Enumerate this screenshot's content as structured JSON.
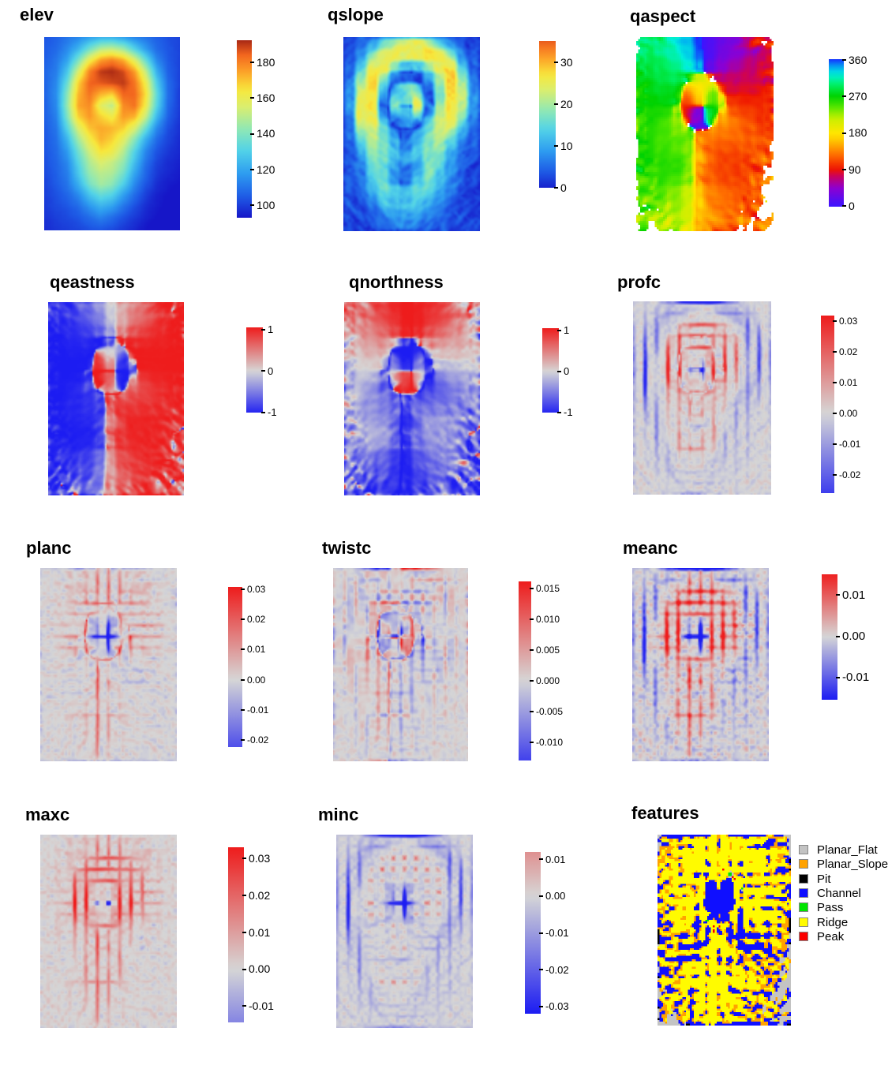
{
  "page": {
    "background": "#ffffff"
  },
  "chart_data": {
    "type": "heatmap",
    "description": "Figure of 12 terrain-analysis raster maps (elevation and derived geomorphometric layers) each with its own color legend",
    "shared_elevation_model": {
      "cols": 13,
      "rows": 18,
      "cell_size_m": 60,
      "values": [
        [
          104,
          106,
          110,
          114,
          120,
          124,
          124,
          120,
          114,
          110,
          106,
          103,
          101
        ],
        [
          105,
          108,
          114,
          124,
          138,
          150,
          152,
          146,
          132,
          118,
          108,
          104,
          101
        ],
        [
          106,
          110,
          120,
          140,
          162,
          176,
          180,
          174,
          158,
          136,
          114,
          105,
          101
        ],
        [
          107,
          112,
          128,
          156,
          180,
          190,
          192,
          188,
          176,
          152,
          122,
          106,
          101
        ],
        [
          107,
          114,
          136,
          168,
          184,
          186,
          188,
          190,
          182,
          162,
          130,
          108,
          101
        ],
        [
          107,
          115,
          142,
          172,
          182,
          172,
          168,
          184,
          184,
          166,
          134,
          109,
          100
        ],
        [
          106,
          114,
          144,
          174,
          178,
          158,
          150,
          178,
          182,
          162,
          132,
          108,
          100
        ],
        [
          106,
          112,
          140,
          168,
          176,
          168,
          162,
          176,
          172,
          152,
          124,
          106,
          99
        ],
        [
          105,
          110,
          132,
          156,
          170,
          174,
          172,
          168,
          156,
          136,
          114,
          103,
          98
        ],
        [
          104,
          109,
          124,
          146,
          162,
          172,
          168,
          158,
          142,
          122,
          108,
          101,
          97
        ],
        [
          104,
          108,
          118,
          138,
          154,
          166,
          162,
          150,
          132,
          114,
          104,
          99,
          96
        ],
        [
          103,
          107,
          114,
          132,
          148,
          156,
          152,
          144,
          126,
          110,
          101,
          97,
          95
        ],
        [
          102,
          106,
          112,
          128,
          144,
          150,
          148,
          138,
          120,
          107,
          99,
          96,
          94
        ],
        [
          101,
          105,
          110,
          122,
          138,
          146,
          142,
          130,
          114,
          104,
          97,
          94,
          93
        ],
        [
          100,
          103,
          107,
          114,
          126,
          134,
          130,
          118,
          108,
          100,
          95,
          93,
          92
        ],
        [
          99,
          102,
          104,
          108,
          116,
          122,
          118,
          110,
          103,
          97,
          94,
          92,
          91
        ],
        [
          98,
          100,
          102,
          104,
          108,
          112,
          108,
          103,
          99,
          95,
          93,
          91,
          90
        ],
        [
          97,
          99,
          100,
          101,
          103,
          104,
          102,
          99,
          96,
          93,
          91,
          89,
          88
        ]
      ]
    },
    "palettes": {
      "jet": [
        [
          0,
          "#1616c8"
        ],
        [
          0.12,
          "#1e5be6"
        ],
        [
          0.25,
          "#2e9df0"
        ],
        [
          0.38,
          "#52d3e8"
        ],
        [
          0.5,
          "#90e8b4"
        ],
        [
          0.62,
          "#d8ee72"
        ],
        [
          0.72,
          "#f8e83c"
        ],
        [
          0.82,
          "#fca428"
        ],
        [
          0.92,
          "#f2641e"
        ],
        [
          1,
          "#a82814"
        ]
      ],
      "aspect": [
        [
          0,
          "#3c14ff"
        ],
        [
          0.12,
          "#8c00d2"
        ],
        [
          0.2,
          "#c80064"
        ],
        [
          0.25,
          "#ee1400"
        ],
        [
          0.35,
          "#ff6e00"
        ],
        [
          0.45,
          "#ffc800"
        ],
        [
          0.5,
          "#ffe600"
        ],
        [
          0.6,
          "#c8f000"
        ],
        [
          0.68,
          "#50e600"
        ],
        [
          0.75,
          "#00d200"
        ],
        [
          0.83,
          "#00f064"
        ],
        [
          0.9,
          "#00f0dc"
        ],
        [
          0.95,
          "#00b4f0"
        ],
        [
          1,
          "#1432ff"
        ]
      ],
      "diverging_pos": "#ee1c1c",
      "diverging_mid": "#d6d6d6",
      "diverging_neg": "#1c1cf2"
    },
    "panels": [
      {
        "id": "elev",
        "title": "elev",
        "legend": "colorbar",
        "palette": "jet",
        "scale_min": 93,
        "scale_max": 192.3,
        "palette_span": [
          0,
          1
        ],
        "ticks": [
          {
            "label": "180",
            "value": 180
          },
          {
            "label": "160",
            "value": 160
          },
          {
            "label": "140",
            "value": 140
          },
          {
            "label": "120",
            "value": 120
          },
          {
            "label": "100",
            "value": 100
          }
        ]
      },
      {
        "id": "qslope",
        "title": "qslope",
        "legend": "colorbar",
        "palette": "jet",
        "scale_min": 0,
        "scale_max": 35.2,
        "palette_span": [
          0.02,
          0.93
        ],
        "ticks": [
          {
            "label": "30",
            "value": 30
          },
          {
            "label": "20",
            "value": 20
          },
          {
            "label": "10",
            "value": 10
          },
          {
            "label": "0",
            "value": 0
          }
        ]
      },
      {
        "id": "qaspect",
        "title": "qaspect",
        "legend": "colorbar",
        "palette": "aspect",
        "scale_min": -2,
        "scale_max": 362,
        "palette_span": [
          0,
          1
        ],
        "ticks": [
          {
            "label": "360",
            "value": 360
          },
          {
            "label": "270",
            "value": 270
          },
          {
            "label": "180",
            "value": 180
          },
          {
            "label": "90",
            "value": 90
          },
          {
            "label": "0",
            "value": 0
          }
        ]
      },
      {
        "id": "qeastness",
        "title": "qeastness",
        "legend": "colorbar",
        "palette": "diverging",
        "scale_min": -1,
        "scale_max": 1.05,
        "ticks": [
          {
            "label": "1",
            "value": 1
          },
          {
            "label": "0",
            "value": 0
          },
          {
            "label": "-1",
            "value": -1
          }
        ]
      },
      {
        "id": "qnorthness",
        "title": "qnorthness",
        "legend": "colorbar",
        "palette": "diverging",
        "scale_min": -1,
        "scale_max": 1.05,
        "ticks": [
          {
            "label": "1",
            "value": 1
          },
          {
            "label": "0",
            "value": 0
          },
          {
            "label": "-1",
            "value": -1
          }
        ]
      },
      {
        "id": "profc",
        "title": "profc",
        "legend": "colorbar",
        "palette": "diverging",
        "scale_min": -0.026,
        "scale_max": 0.0318,
        "ticks": [
          {
            "label": "0.03",
            "value": 0.03
          },
          {
            "label": "0.02",
            "value": 0.02
          },
          {
            "label": "0.01",
            "value": 0.01
          },
          {
            "label": "0.00",
            "value": 0
          },
          {
            "label": "-0.01",
            "value": -0.01
          },
          {
            "label": "-0.02",
            "value": -0.02
          }
        ]
      },
      {
        "id": "planc",
        "title": "planc",
        "legend": "colorbar",
        "palette": "diverging",
        "scale_min": -0.0224,
        "scale_max": 0.0308,
        "ticks": [
          {
            "label": "0.03",
            "value": 0.03
          },
          {
            "label": "0.02",
            "value": 0.02
          },
          {
            "label": "0.01",
            "value": 0.01
          },
          {
            "label": "0.00",
            "value": 0
          },
          {
            "label": "-0.01",
            "value": -0.01
          },
          {
            "label": "-0.02",
            "value": -0.02
          }
        ]
      },
      {
        "id": "twistc",
        "title": "twistc",
        "legend": "colorbar",
        "palette": "diverging",
        "scale_min": -0.013,
        "scale_max": 0.0162,
        "ticks": [
          {
            "label": "0.015",
            "value": 0.015
          },
          {
            "label": "0.010",
            "value": 0.01
          },
          {
            "label": "0.005",
            "value": 0.005
          },
          {
            "label": "0.000",
            "value": 0
          },
          {
            "label": "-0.005",
            "value": -0.005
          },
          {
            "label": "-0.010",
            "value": -0.01
          }
        ]
      },
      {
        "id": "meanc",
        "title": "meanc",
        "legend": "colorbar",
        "palette": "diverging",
        "scale_min": -0.0153,
        "scale_max": 0.015,
        "ticks": [
          {
            "label": "0.01",
            "value": 0.01
          },
          {
            "label": "0.00",
            "value": 0
          },
          {
            "label": "-0.01",
            "value": -0.01
          }
        ]
      },
      {
        "id": "maxc",
        "title": "maxc",
        "legend": "colorbar",
        "palette": "diverging",
        "scale_min": -0.0144,
        "scale_max": 0.033,
        "ticks": [
          {
            "label": "0.03",
            "value": 0.03
          },
          {
            "label": "0.02",
            "value": 0.02
          },
          {
            "label": "0.01",
            "value": 0.01
          },
          {
            "label": "0.00",
            "value": 0
          },
          {
            "label": "-0.01",
            "value": -0.01
          }
        ]
      },
      {
        "id": "minc",
        "title": "minc",
        "legend": "colorbar",
        "palette": "diverging",
        "scale_min": -0.032,
        "scale_max": 0.012,
        "ticks": [
          {
            "label": "0.01",
            "value": 0.01
          },
          {
            "label": "0.00",
            "value": 0
          },
          {
            "label": "-0.01",
            "value": -0.01
          },
          {
            "label": "-0.02",
            "value": -0.02
          },
          {
            "label": "-0.03",
            "value": -0.03
          }
        ]
      },
      {
        "id": "features",
        "title": "features",
        "legend": "categories",
        "categories": [
          {
            "label": "Planar_Flat",
            "color": "#c3c3c3"
          },
          {
            "label": "Planar_Slope",
            "color": "#ffa200"
          },
          {
            "label": "Pit",
            "color": "#000000"
          },
          {
            "label": "Channel",
            "color": "#0f0fff"
          },
          {
            "label": "Pass",
            "color": "#00e600"
          },
          {
            "label": "Ridge",
            "color": "#fffb00"
          },
          {
            "label": "Peak",
            "color": "#fb0000"
          }
        ]
      }
    ]
  }
}
